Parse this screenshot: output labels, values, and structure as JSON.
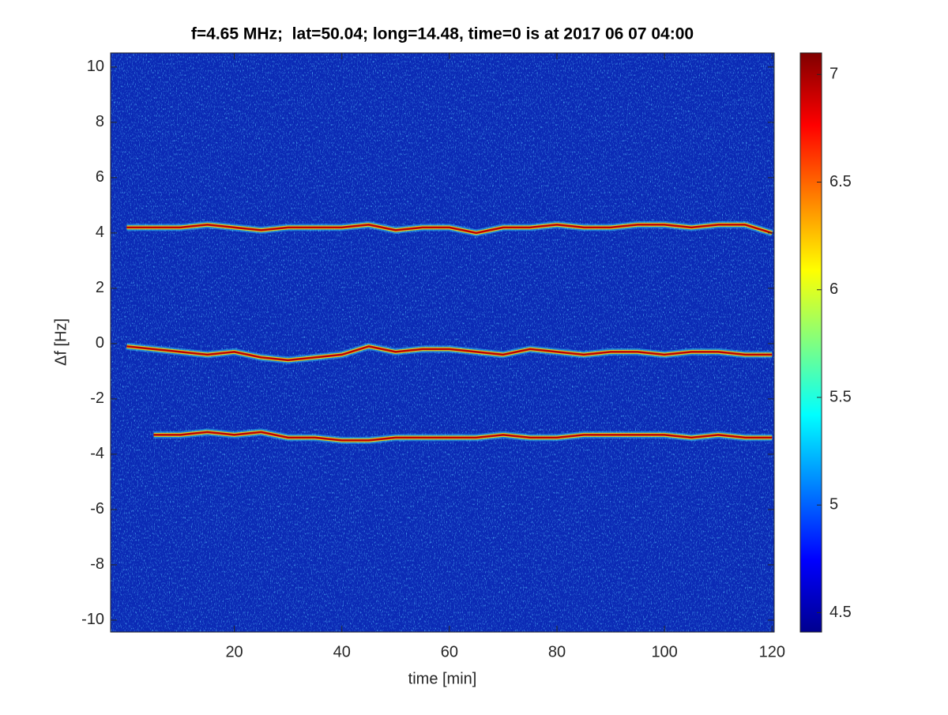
{
  "chart_data": {
    "type": "spectrogram",
    "title": "f=4.65 MHz;  lat=50.04; long=14.48, time=0 is at 2017 06 07 04:00",
    "x_label": "time [min]",
    "y_label": "Δf [Hz]",
    "xlim": [
      -3,
      120.4
    ],
    "xticks": [
      20,
      40,
      60,
      80,
      100,
      120
    ],
    "ylim": [
      -10.43,
      10.51
    ],
    "yticks": [
      -10,
      -8,
      -6,
      -4,
      -2,
      0,
      2,
      4,
      6,
      8,
      10
    ],
    "colormap": "jet",
    "clim": [
      4.41,
      7.1
    ],
    "cticks": [
      4.5,
      5,
      5.5,
      6,
      6.5,
      7
    ],
    "x": [
      0,
      5,
      10,
      15,
      20,
      25,
      30,
      35,
      40,
      45,
      50,
      55,
      60,
      65,
      70,
      75,
      80,
      85,
      90,
      95,
      100,
      105,
      110,
      115,
      120
    ],
    "series": [
      {
        "color": "#c00000",
        "values": [
          4.2,
          4.2,
          4.2,
          4.3,
          4.2,
          4.1,
          4.2,
          4.2,
          4.2,
          4.3,
          4.1,
          4.2,
          4.2,
          4.0,
          4.2,
          4.2,
          4.3,
          4.2,
          4.2,
          4.3,
          4.3,
          4.2,
          4.3,
          4.3,
          4.0
        ]
      },
      {
        "color": "#c00000",
        "values": [
          -0.1,
          -0.2,
          -0.3,
          -0.4,
          -0.3,
          -0.5,
          -0.6,
          -0.5,
          -0.4,
          -0.1,
          -0.3,
          -0.2,
          -0.2,
          -0.3,
          -0.4,
          -0.2,
          -0.3,
          -0.4,
          -0.3,
          -0.3,
          -0.4,
          -0.3,
          -0.3,
          -0.4,
          -0.4
        ]
      },
      {
        "color": "#c00000",
        "values": [
          null,
          -3.3,
          -3.3,
          -3.2,
          -3.3,
          -3.2,
          -3.4,
          -3.4,
          -3.5,
          -3.5,
          -3.4,
          -3.4,
          -3.4,
          -3.4,
          -3.3,
          -3.4,
          -3.4,
          -3.3,
          -3.3,
          -3.3,
          -3.3,
          -3.4,
          -3.3,
          -3.4,
          -3.4
        ]
      }
    ]
  }
}
